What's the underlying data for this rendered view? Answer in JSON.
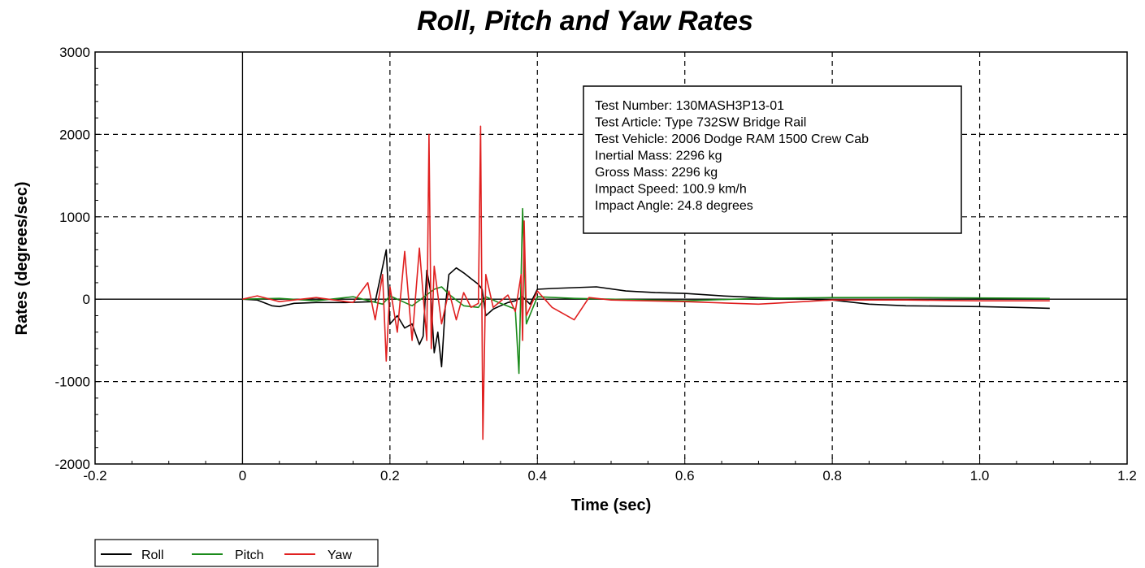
{
  "chart_data": {
    "type": "line",
    "title": "Roll, Pitch and Yaw Rates",
    "xlabel": "Time (sec)",
    "ylabel": "Rates (degrees/sec)",
    "xlim": [
      -0.2,
      1.2
    ],
    "ylim": [
      -2000,
      3000
    ],
    "x_ticks": [
      -0.2,
      0,
      0.2,
      0.4,
      0.6,
      0.8,
      1.0,
      1.2
    ],
    "x_tick_labels": [
      "-0.2",
      "0",
      "0.2",
      "0.4",
      "0.6",
      "0.8",
      "1.0",
      "1.2"
    ],
    "y_ticks": [
      -2000,
      -1000,
      0,
      1000,
      2000,
      3000
    ],
    "y_tick_labels": [
      "-2000",
      "-1000",
      "0",
      "1000",
      "2000",
      "3000"
    ],
    "grid": "dashed",
    "legend_position": "bottom-left",
    "info_box_lines": [
      "Test Number: 130MASH3P13-01",
      "Test Article: Type 732SW Bridge Rail",
      "Test Vehicle: 2006 Dodge RAM 1500 Crew Cab",
      "Inertial Mass: 2296 kg",
      "Gross Mass: 2296 kg",
      "Impact Speed: 100.9 km/h",
      "Impact Angle: 24.8 degrees"
    ],
    "series": [
      {
        "name": "Roll",
        "color": "#000000",
        "points": [
          [
            0,
            0
          ],
          [
            0.02,
            -10
          ],
          [
            0.04,
            -80
          ],
          [
            0.05,
            -90
          ],
          [
            0.07,
            -50
          ],
          [
            0.1,
            -40
          ],
          [
            0.14,
            -40
          ],
          [
            0.18,
            -30
          ],
          [
            0.195,
            600
          ],
          [
            0.2,
            -300
          ],
          [
            0.21,
            -200
          ],
          [
            0.22,
            -350
          ],
          [
            0.23,
            -300
          ],
          [
            0.24,
            -550
          ],
          [
            0.245,
            -450
          ],
          [
            0.25,
            350
          ],
          [
            0.255,
            100
          ],
          [
            0.26,
            -650
          ],
          [
            0.265,
            -400
          ],
          [
            0.27,
            -820
          ],
          [
            0.275,
            -100
          ],
          [
            0.28,
            300
          ],
          [
            0.29,
            380
          ],
          [
            0.3,
            320
          ],
          [
            0.31,
            250
          ],
          [
            0.32,
            180
          ],
          [
            0.325,
            120
          ],
          [
            0.33,
            -200
          ],
          [
            0.34,
            -120
          ],
          [
            0.35,
            -80
          ],
          [
            0.36,
            -40
          ],
          [
            0.37,
            -20
          ],
          [
            0.38,
            30
          ],
          [
            0.39,
            -60
          ],
          [
            0.4,
            120
          ],
          [
            0.42,
            130
          ],
          [
            0.45,
            140
          ],
          [
            0.48,
            150
          ],
          [
            0.52,
            100
          ],
          [
            0.56,
            80
          ],
          [
            0.6,
            70
          ],
          [
            0.65,
            40
          ],
          [
            0.7,
            20
          ],
          [
            0.8,
            -10
          ],
          [
            0.85,
            -60
          ],
          [
            0.9,
            -80
          ],
          [
            1.0,
            -90
          ],
          [
            1.05,
            -100
          ],
          [
            1.095,
            -110
          ]
        ]
      },
      {
        "name": "Pitch",
        "color": "#1a8a1a",
        "points": [
          [
            0,
            0
          ],
          [
            0.05,
            10
          ],
          [
            0.1,
            -20
          ],
          [
            0.15,
            30
          ],
          [
            0.19,
            -60
          ],
          [
            0.2,
            40
          ],
          [
            0.23,
            -80
          ],
          [
            0.26,
            120
          ],
          [
            0.27,
            150
          ],
          [
            0.28,
            60
          ],
          [
            0.3,
            -80
          ],
          [
            0.32,
            -100
          ],
          [
            0.33,
            30
          ],
          [
            0.35,
            -50
          ],
          [
            0.37,
            -120
          ],
          [
            0.375,
            -900
          ],
          [
            0.38,
            1100
          ],
          [
            0.385,
            -300
          ],
          [
            0.4,
            30
          ],
          [
            0.45,
            10
          ],
          [
            0.5,
            0
          ],
          [
            0.6,
            -20
          ],
          [
            0.7,
            10
          ],
          [
            0.8,
            20
          ],
          [
            0.9,
            20
          ],
          [
            1.0,
            15
          ],
          [
            1.095,
            10
          ]
        ]
      },
      {
        "name": "Yaw",
        "color": "#e02020",
        "points": [
          [
            0,
            0
          ],
          [
            0.02,
            40
          ],
          [
            0.05,
            -30
          ],
          [
            0.1,
            20
          ],
          [
            0.15,
            -40
          ],
          [
            0.17,
            200
          ],
          [
            0.18,
            -250
          ],
          [
            0.19,
            300
          ],
          [
            0.195,
            -750
          ],
          [
            0.2,
            150
          ],
          [
            0.21,
            -400
          ],
          [
            0.22,
            580
          ],
          [
            0.23,
            -500
          ],
          [
            0.24,
            620
          ],
          [
            0.25,
            -500
          ],
          [
            0.253,
            2000
          ],
          [
            0.256,
            -600
          ],
          [
            0.26,
            400
          ],
          [
            0.27,
            -300
          ],
          [
            0.28,
            100
          ],
          [
            0.29,
            -250
          ],
          [
            0.3,
            80
          ],
          [
            0.31,
            -100
          ],
          [
            0.32,
            -50
          ],
          [
            0.323,
            2100
          ],
          [
            0.326,
            -1700
          ],
          [
            0.33,
            300
          ],
          [
            0.34,
            -100
          ],
          [
            0.36,
            50
          ],
          [
            0.37,
            -150
          ],
          [
            0.378,
            300
          ],
          [
            0.38,
            -500
          ],
          [
            0.382,
            950
          ],
          [
            0.385,
            -200
          ],
          [
            0.4,
            100
          ],
          [
            0.42,
            -100
          ],
          [
            0.45,
            -250
          ],
          [
            0.47,
            20
          ],
          [
            0.5,
            -10
          ],
          [
            0.6,
            -30
          ],
          [
            0.7,
            -60
          ],
          [
            0.8,
            -10
          ],
          [
            0.9,
            -10
          ],
          [
            1.0,
            -20
          ],
          [
            1.095,
            -20
          ]
        ]
      }
    ]
  }
}
